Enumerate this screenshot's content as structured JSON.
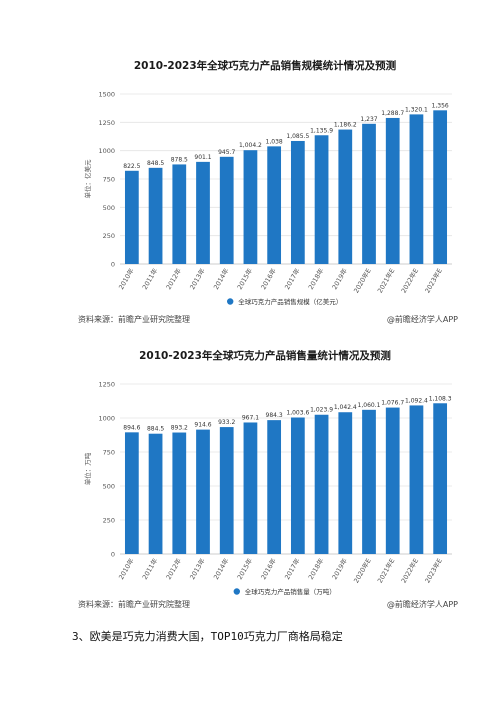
{
  "chart_data": [
    {
      "type": "bar",
      "title": "2010-2023年全球巧克力产品销售规模统计情况及预测",
      "ylabel": "单位：亿美元",
      "ylim": [
        0,
        1500
      ],
      "yticks": [
        0,
        250,
        500,
        750,
        1000,
        1250,
        1500
      ],
      "categories": [
        "2010年",
        "2011年",
        "2012年",
        "2013年",
        "2014年",
        "2015年",
        "2016年",
        "2017年",
        "2018年",
        "2019年",
        "2020年E",
        "2021年E",
        "2022年E",
        "2023年E"
      ],
      "series": [
        {
          "name": "全球巧克力产品销售规模（亿美元）",
          "values": [
            822.5,
            848.5,
            878.5,
            901.1,
            945.7,
            1004.2,
            1038,
            1085.5,
            1135.9,
            1186.2,
            1237,
            1288.7,
            1320.1,
            1356
          ],
          "labels": [
            "822.5",
            "848.5",
            "878.5",
            "901.1",
            "945.7",
            "1,004.2",
            "1,038",
            "1,085.5",
            "1,135.9",
            "1,186.2",
            "1,237",
            "1,288.7",
            "1,320.1",
            "1,356"
          ]
        }
      ],
      "grid": true,
      "legend": "bottom",
      "color": "#1f77c4"
    },
    {
      "type": "bar",
      "title": "2010-2023年全球巧克力产品销售量统计情况及预测",
      "ylabel": "单位：万吨",
      "ylim": [
        0,
        1250
      ],
      "yticks": [
        0,
        250,
        500,
        750,
        1000,
        1250
      ],
      "categories": [
        "2010年",
        "2011年",
        "2012年",
        "2013年",
        "2014年",
        "2015年",
        "2016年",
        "2017年",
        "2018年",
        "2019年",
        "2020年E",
        "2021年E",
        "2022年E",
        "2023年E"
      ],
      "series": [
        {
          "name": "全球巧克力产品销售量（万吨）",
          "values": [
            894.6,
            884.5,
            893.2,
            914.6,
            933.2,
            967.1,
            984.3,
            1003.6,
            1023.9,
            1042.4,
            1060.1,
            1076.7,
            1092.4,
            1108.3
          ],
          "labels": [
            "894.6",
            "884.5",
            "893.2",
            "914.6",
            "933.2",
            "967.1",
            "984.3",
            "1,003.6",
            "1,023.9",
            "1,042.4",
            "1,060.1",
            "1,076.7",
            "1,092.4",
            "1,108.3"
          ]
        }
      ],
      "grid": true,
      "legend": "bottom",
      "color": "#1f77c4"
    }
  ],
  "footers": [
    {
      "source": "资料来源：前瞻产业研究院整理",
      "brand": "@前瞻经济学人APP"
    },
    {
      "source": "资料来源：前瞻产业研究院整理",
      "brand": "@前瞻经济学人APP"
    }
  ],
  "section_heading": "3、欧美是巧克力消费大国，TOP10巧克力厂商格局稳定"
}
